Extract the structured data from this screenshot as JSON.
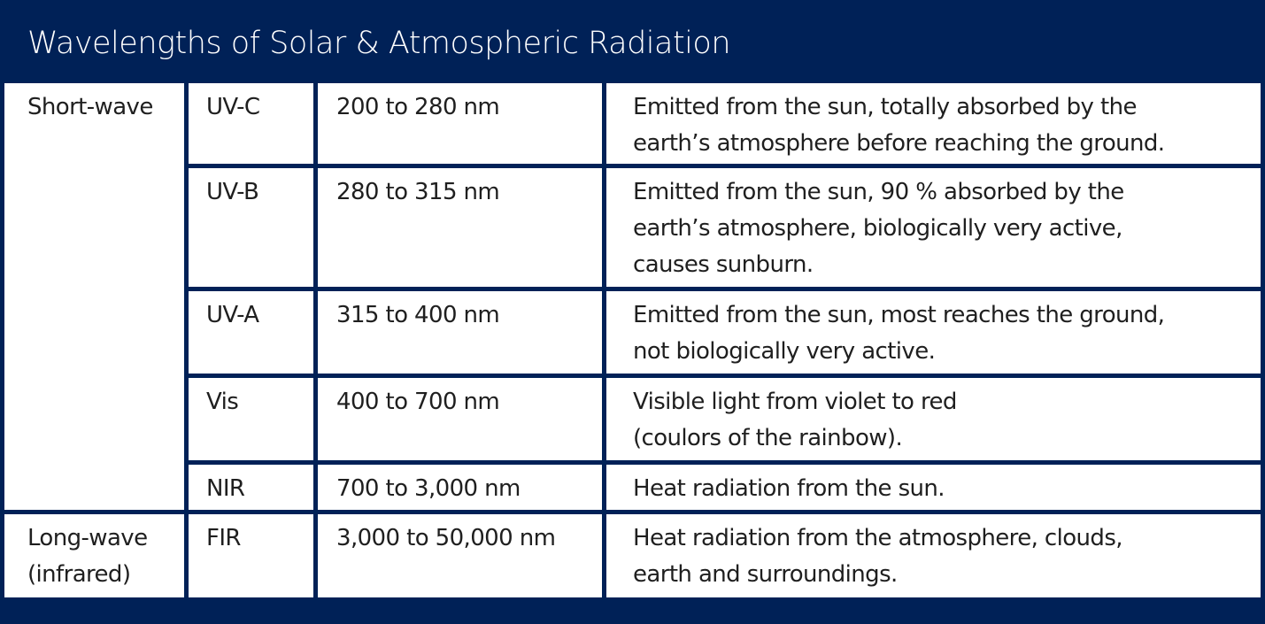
{
  "title": "Wavelengths of Solar & Atmospheric Radiation",
  "groups": {
    "short_wave": {
      "line1": "Short-wave"
    },
    "long_wave": {
      "line1": "Long-wave",
      "line2": "(infrared)"
    }
  },
  "rows": [
    {
      "band": "UV-C",
      "range": "200 to 280 nm",
      "desc": [
        "Emitted from the sun, totally absorbed by the",
        "earth’s atmosphere before reaching the ground."
      ]
    },
    {
      "band": "UV-B",
      "range": "280 to 315 nm",
      "desc": [
        "Emitted from the sun, 90 % absorbed by the",
        "earth’s atmosphere, biologically very active,",
        "causes sunburn."
      ]
    },
    {
      "band": "UV-A",
      "range": "315 to 400 nm",
      "desc": [
        "Emitted from the sun, most reaches the ground,",
        "not biologically very active."
      ]
    },
    {
      "band": "Vis",
      "range": "400 to 700 nm",
      "desc": [
        "Visible light from violet to red",
        "(coulors of the rainbow)."
      ]
    },
    {
      "band": "NIR",
      "range": "700 to 3,000 nm",
      "desc": [
        "Heat radiation from the sun."
      ]
    },
    {
      "band": "FIR",
      "range": "3,000 to 50,000 nm",
      "desc": [
        "Heat radiation from the atmosphere, clouds,",
        "earth and surroundings."
      ]
    }
  ],
  "colors": {
    "header_bg": "#002157",
    "cell_bg": "#ffffff",
    "text": "#1f1f1f"
  }
}
